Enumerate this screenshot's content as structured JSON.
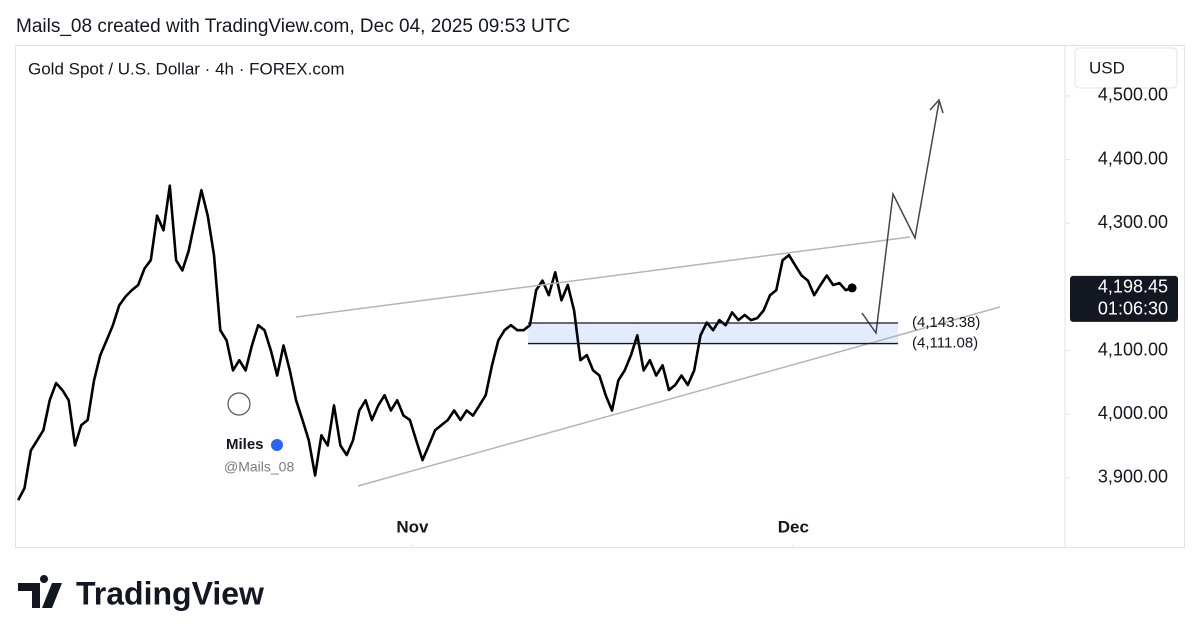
{
  "header": "Mails_08 created with TradingView.com, Dec 04, 2025 09:53 UTC",
  "footer": "TradingView",
  "watermark": {
    "name": "Miles",
    "handle": "@Mails_08"
  },
  "chart_data": {
    "type": "line",
    "title": "Gold Spot / U.S. Dollar · 4h · FOREX.com",
    "currency": "USD",
    "color": "#000000",
    "values": [
      3865,
      3884,
      3943,
      3959,
      3975,
      4022,
      4049,
      4038,
      4022,
      3951,
      3983,
      3991,
      4053,
      4093,
      4116,
      4140,
      4171,
      4185,
      4195,
      4203,
      4229,
      4242,
      4312,
      4289,
      4359,
      4242,
      4226,
      4257,
      4305,
      4352,
      4312,
      4250,
      4132,
      4116,
      4069,
      4085,
      4069,
      4108,
      4140,
      4132,
      4100,
      4061,
      4108,
      4069,
      4022,
      3991,
      3959,
      3904,
      3967,
      3951,
      4014,
      3951,
      3936,
      3959,
      4006,
      4022,
      3991,
      4014,
      4030,
      4006,
      4022,
      3998,
      3991,
      3959,
      3928,
      3951,
      3975,
      3983,
      3991,
      4006,
      3991,
      4006,
      3998,
      4014,
      4030,
      4077,
      4116,
      4132,
      4140,
      4132,
      4132,
      4140,
      4195,
      4210,
      4187,
      4223,
      4179,
      4203,
      4163,
      4085,
      4093,
      4069,
      4061,
      4030,
      4006,
      4053,
      4069,
      4093,
      4124,
      4069,
      4085,
      4061,
      4077,
      4038,
      4046,
      4061,
      4046,
      4069,
      4124,
      4144,
      4132,
      4148,
      4140,
      4160,
      4148,
      4156,
      4148,
      4151,
      4163,
      4187,
      4195,
      4242,
      4250,
      4234,
      4218,
      4210,
      4187,
      4203,
      4218,
      4203,
      4206,
      4195,
      4198.45
    ],
    "xlim": [
      -0.5,
      165.7
    ],
    "xticks": [
      {
        "value": 62.4,
        "label": "Nov"
      },
      {
        "value": 122.7,
        "label": "Dec"
      }
    ],
    "ylim": [
      3790,
      4580
    ],
    "yticks": [
      {
        "value": 3900,
        "label": "3,900.00"
      },
      {
        "value": 4000,
        "label": "4,000.00"
      },
      {
        "value": 4100,
        "label": "4,100.00"
      },
      {
        "value": 4300,
        "label": "4,300.00"
      },
      {
        "value": 4400,
        "label": "4,400.00"
      },
      {
        "value": 4500,
        "label": "4,500.00"
      }
    ],
    "levels": [
      {
        "value": 4143.38,
        "label": "(4,143.38)"
      },
      {
        "value": 4111.08,
        "label": "(4,111.08)"
      }
    ],
    "last_price": {
      "value": 4198.45,
      "label": "4,198.45"
    },
    "countdown": "01:06:30"
  }
}
